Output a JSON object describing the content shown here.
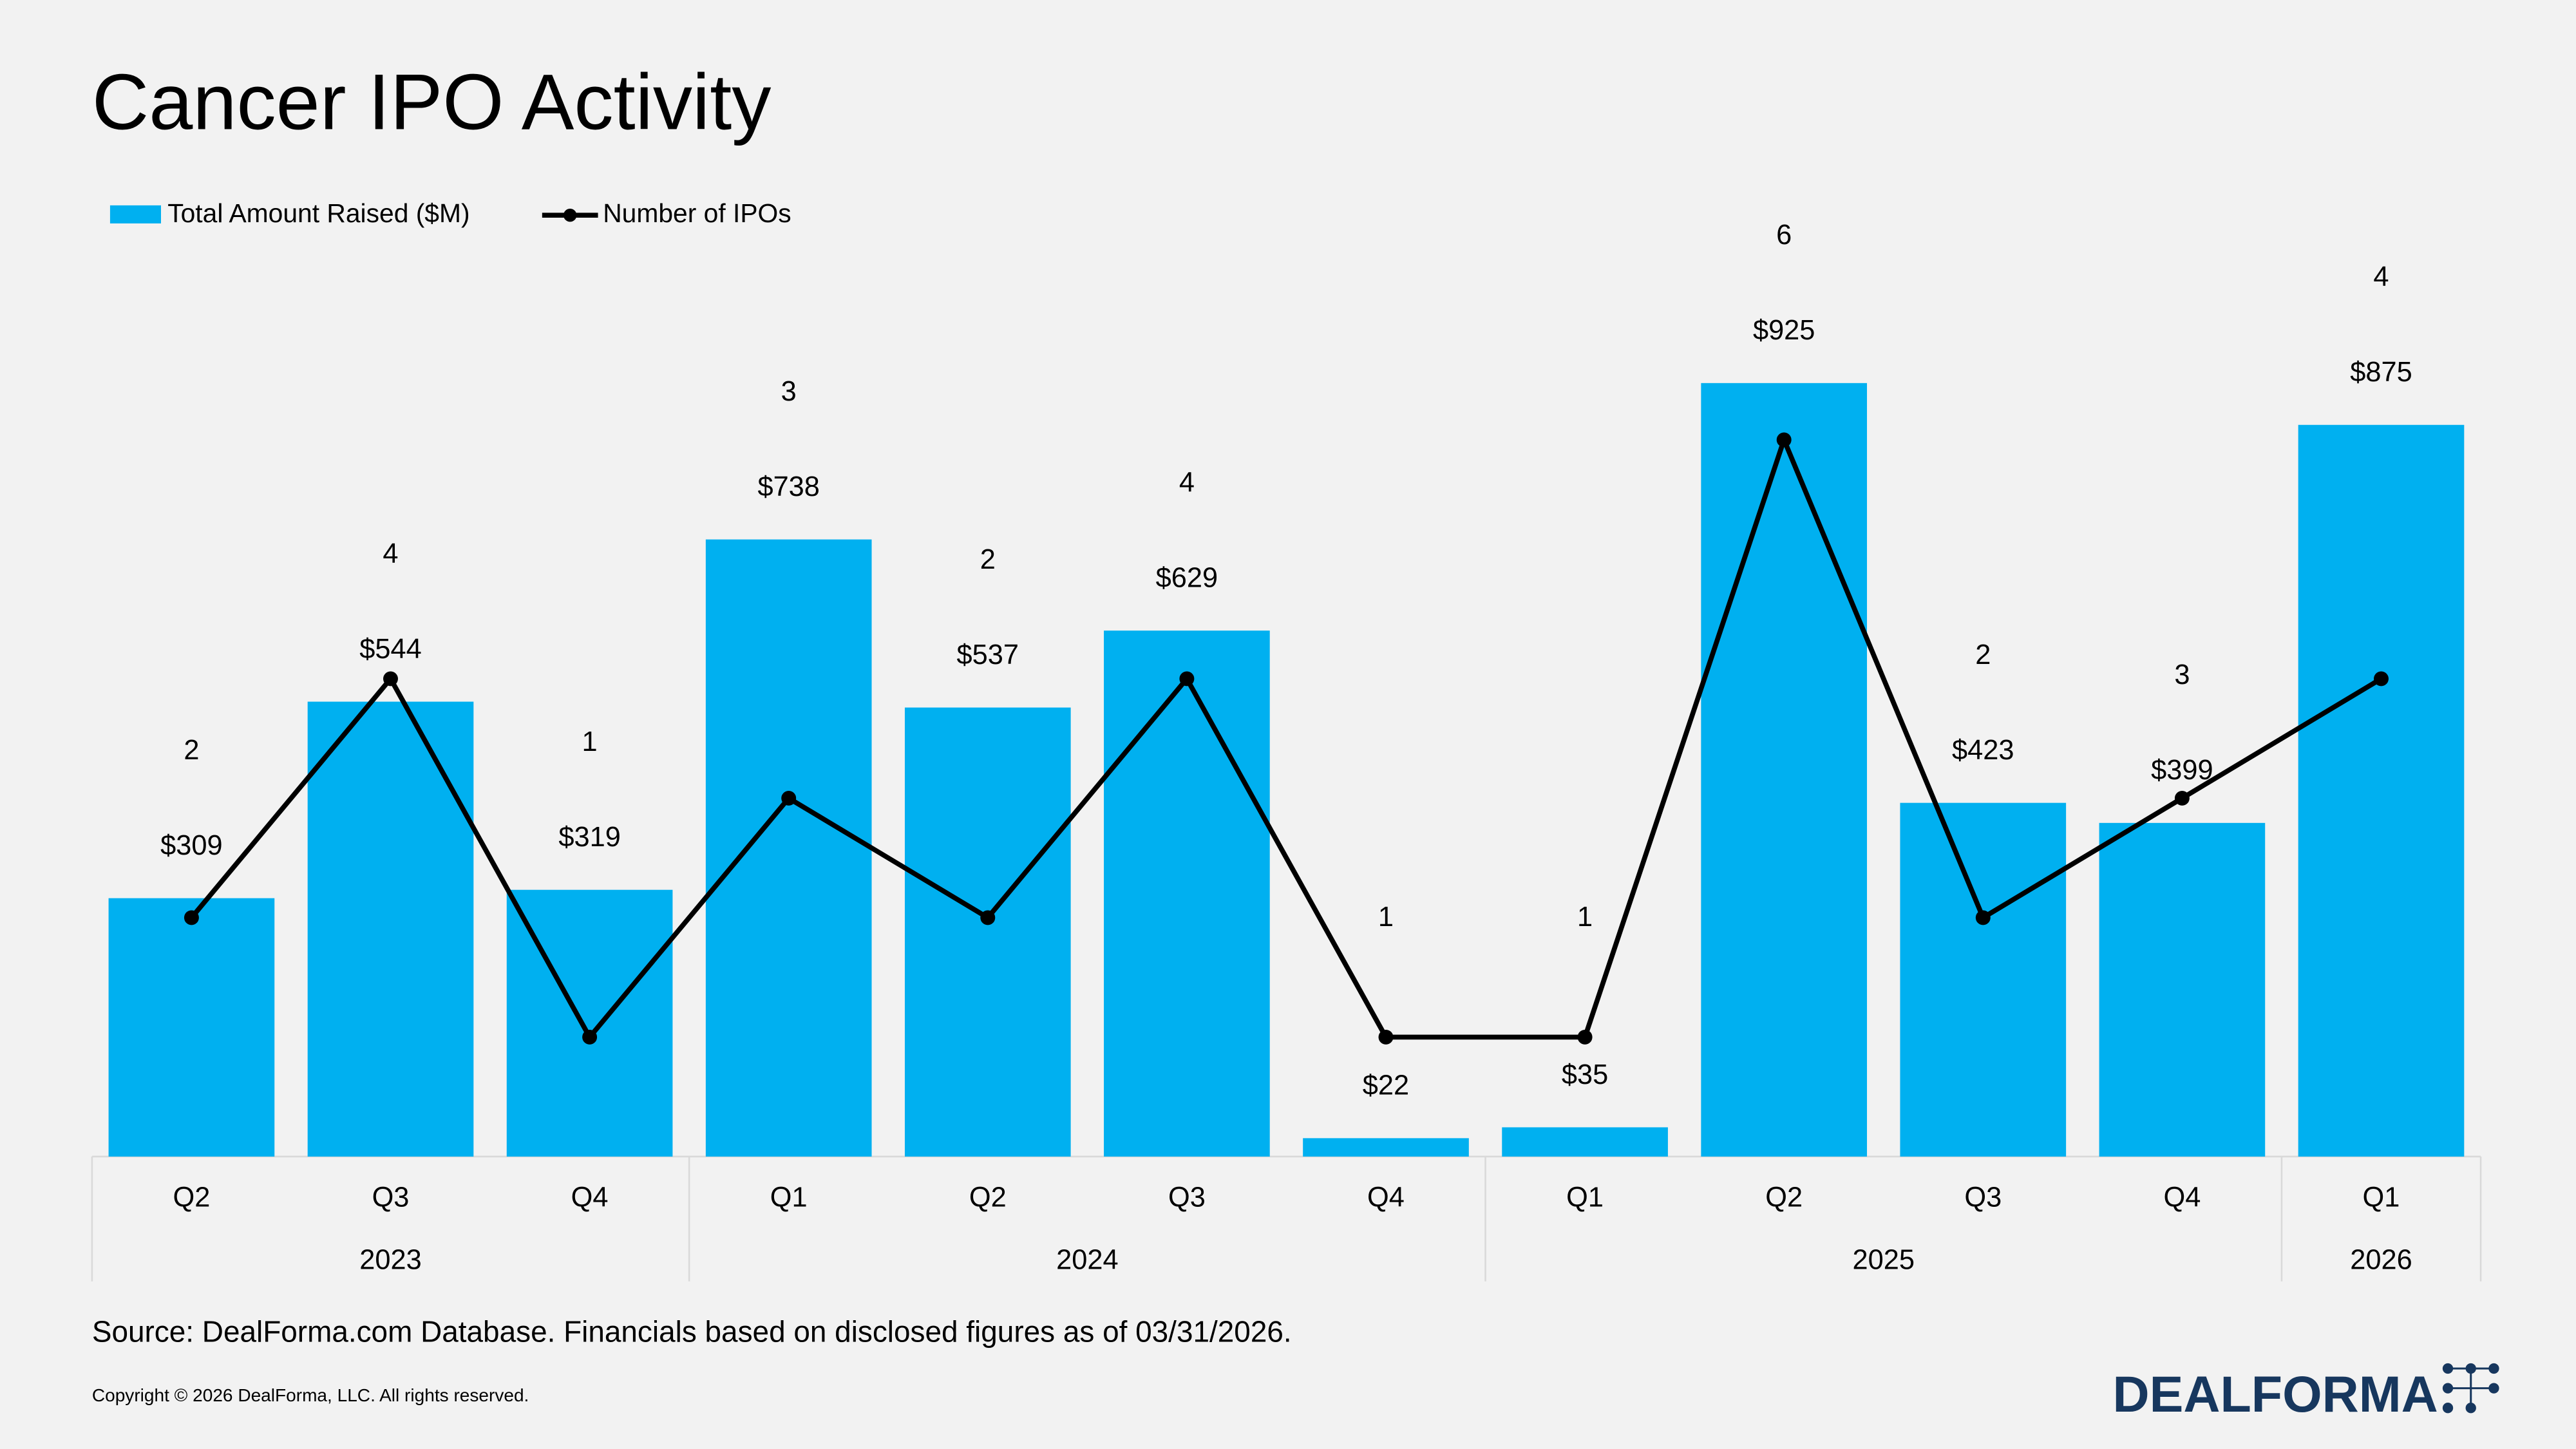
{
  "chart_data": {
    "type": "bar_line",
    "title": "Cancer IPO Activity",
    "categories": [
      "Q2",
      "Q3",
      "Q4",
      "Q1",
      "Q2",
      "Q3",
      "Q4",
      "Q1",
      "Q2",
      "Q3",
      "Q4",
      "Q1"
    ],
    "category_groups": [
      "2023",
      null,
      null,
      "2024",
      null,
      null,
      null,
      "2025",
      null,
      null,
      null,
      "2026"
    ],
    "series": [
      {
        "name": "Total Amount Raised ($M)",
        "type": "bar",
        "color": "#00b0f0",
        "values": [
          309,
          544,
          319,
          738,
          537,
          629,
          22,
          35,
          925,
          423,
          399,
          875
        ],
        "value_labels": [
          "$309",
          "$544",
          "$319",
          "$738",
          "$537",
          "$629",
          "$22",
          "$35",
          "$925",
          "$423",
          "$399",
          "$875"
        ]
      },
      {
        "name": "Number of IPOs",
        "type": "line",
        "color": "#000000",
        "axis": "y2",
        "values": [
          2,
          4,
          1,
          3,
          2,
          4,
          1,
          1,
          6,
          2,
          3,
          4
        ]
      }
    ],
    "ylim": [
      0,
      1000
    ],
    "y2lim": [
      0,
      7
    ],
    "legend": "top-left",
    "source": "Source: DealForma.com Database. Financials based on disclosed figures as of 03/31/2026.",
    "copyright": "Copyright © 2026 DealForma, LLC. All rights reserved.",
    "logo": "DealForma"
  }
}
